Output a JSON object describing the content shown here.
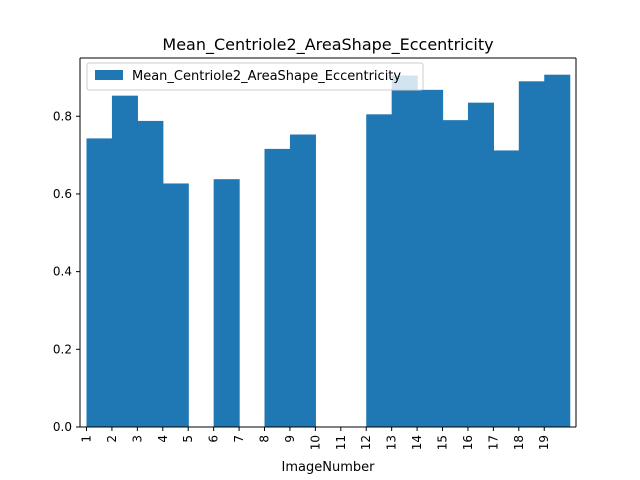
{
  "chart_data": {
    "type": "bar",
    "title": "Mean_Centriole2_AreaShape_Eccentricity",
    "xlabel": "ImageNumber",
    "ylabel": "",
    "ylim": [
      0,
      0.95
    ],
    "yticks": [
      0.0,
      0.2,
      0.4,
      0.6,
      0.8
    ],
    "ytick_labels": [
      "0.0",
      "0.2",
      "0.4",
      "0.6",
      "0.8"
    ],
    "categories": [
      "1",
      "2",
      "3",
      "4",
      "5",
      "6",
      "7",
      "8",
      "9",
      "10",
      "11",
      "12",
      "13",
      "14",
      "15",
      "16",
      "17",
      "18",
      "19"
    ],
    "bars": [
      {
        "x": 1,
        "value": 0.743
      },
      {
        "x": 2,
        "value": 0.853
      },
      {
        "x": 3,
        "value": 0.788
      },
      {
        "x": 4,
        "value": 0.627
      },
      {
        "x": 6,
        "value": 0.638
      },
      {
        "x": 8,
        "value": 0.716
      },
      {
        "x": 9,
        "value": 0.753
      },
      {
        "x": 12,
        "value": 0.805
      },
      {
        "x": 13,
        "value": 0.905
      },
      {
        "x": 14,
        "value": 0.868
      },
      {
        "x": 15,
        "value": 0.79
      },
      {
        "x": 16,
        "value": 0.835
      },
      {
        "x": 17,
        "value": 0.712
      },
      {
        "x": 18,
        "value": 0.89
      },
      {
        "x": 19,
        "value": 0.907
      }
    ],
    "series": [
      {
        "name": "Mean_Centriole2_AreaShape_Eccentricity",
        "color": "#1f77b4"
      }
    ],
    "legend": "top-left",
    "grid": false
  }
}
